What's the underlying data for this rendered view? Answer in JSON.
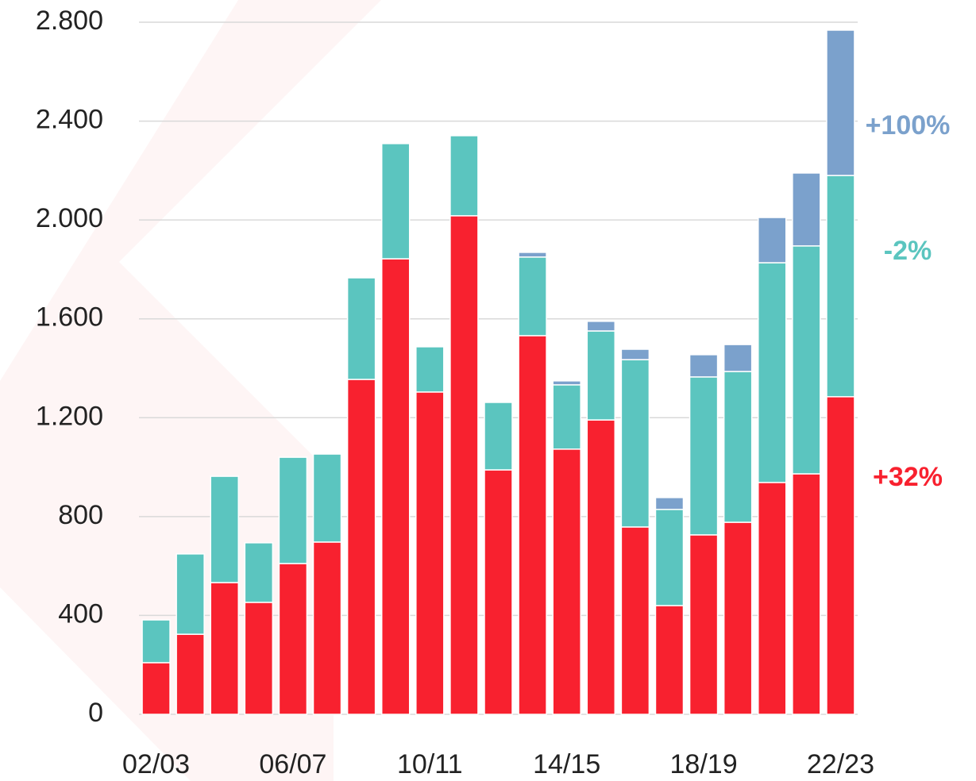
{
  "chart_data": {
    "type": "stacked_bar",
    "categories": [
      "02/03",
      null,
      null,
      null,
      "06/07",
      null,
      null,
      null,
      "10/11",
      null,
      null,
      null,
      "14/15",
      null,
      null,
      null,
      "18/19",
      null,
      null,
      null,
      "22/23"
    ],
    "series": [
      {
        "name": null,
        "color": "#f8212f",
        "values": [
          209,
          324,
          533,
          453,
          610,
          697,
          1355,
          1843,
          1304,
          2017,
          989,
          1532,
          1073,
          1191,
          758,
          440,
          726,
          777,
          938,
          973,
          1285
        ]
      },
      {
        "name": null,
        "color": "#5bc5bf",
        "values": [
          173,
          325,
          430,
          241,
          430,
          356,
          411,
          466,
          183,
          324,
          273,
          318,
          260,
          360,
          677,
          389,
          639,
          610,
          889,
          922,
          895
        ]
      },
      {
        "name": null,
        "color": "#7ba1cc",
        "values": [
          null,
          null,
          null,
          null,
          null,
          null,
          null,
          null,
          null,
          null,
          null,
          19,
          16,
          39,
          42,
          48,
          90,
          109,
          183,
          295,
          588
        ]
      }
    ],
    "annotations": [
      {
        "text": "+100%",
        "color": "#7ba1cc"
      },
      {
        "text": "-2%",
        "color": "#5bc5bf"
      },
      {
        "text": "+32%",
        "color": "#f8212f"
      }
    ],
    "ylim": [
      0,
      2800
    ],
    "yticks": [
      0,
      400,
      800,
      {
        "value": 1200,
        "label": "1.200"
      },
      {
        "value": 1600,
        "label": "1.600"
      },
      {
        "value": 2000,
        "label": "2.000"
      },
      {
        "value": 2400,
        "label": "2.400"
      },
      {
        "value": 2800,
        "label": "2.800"
      }
    ],
    "grid": true
  }
}
